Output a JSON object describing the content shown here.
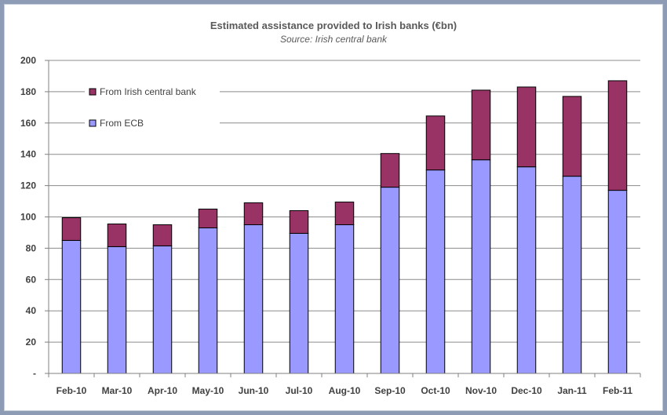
{
  "chart_data": {
    "type": "bar",
    "stacked": true,
    "title": "Estimated assistance provided to Irish banks (€bn)",
    "subtitle": "Source: Irish central bank",
    "categories": [
      "Feb-10",
      "Mar-10",
      "Apr-10",
      "May-10",
      "Jun-10",
      "Jul-10",
      "Aug-10",
      "Sep-10",
      "Oct-10",
      "Nov-10",
      "Dec-10",
      "Jan-11",
      "Feb-11"
    ],
    "series": [
      {
        "name": "From ECB",
        "color": "#9999ff",
        "values": [
          85,
          81,
          81.5,
          93,
          95,
          89.5,
          95,
          119,
          130,
          136.5,
          132,
          126,
          117
        ]
      },
      {
        "name": "From Irish central bank",
        "color": "#993366",
        "values": [
          14.5,
          14.5,
          13.5,
          12,
          14,
          14.5,
          14.5,
          21.5,
          34.5,
          44.5,
          51,
          51,
          70
        ]
      }
    ],
    "ylim": [
      0,
      200
    ],
    "yticks": [
      0,
      20,
      40,
      60,
      80,
      100,
      120,
      140,
      160,
      180,
      200
    ],
    "ytick_labels": [
      "-",
      "20",
      "40",
      "60",
      "80",
      "100",
      "120",
      "140",
      "160",
      "180",
      "200"
    ],
    "grid": true,
    "legend_position": "top-left"
  }
}
